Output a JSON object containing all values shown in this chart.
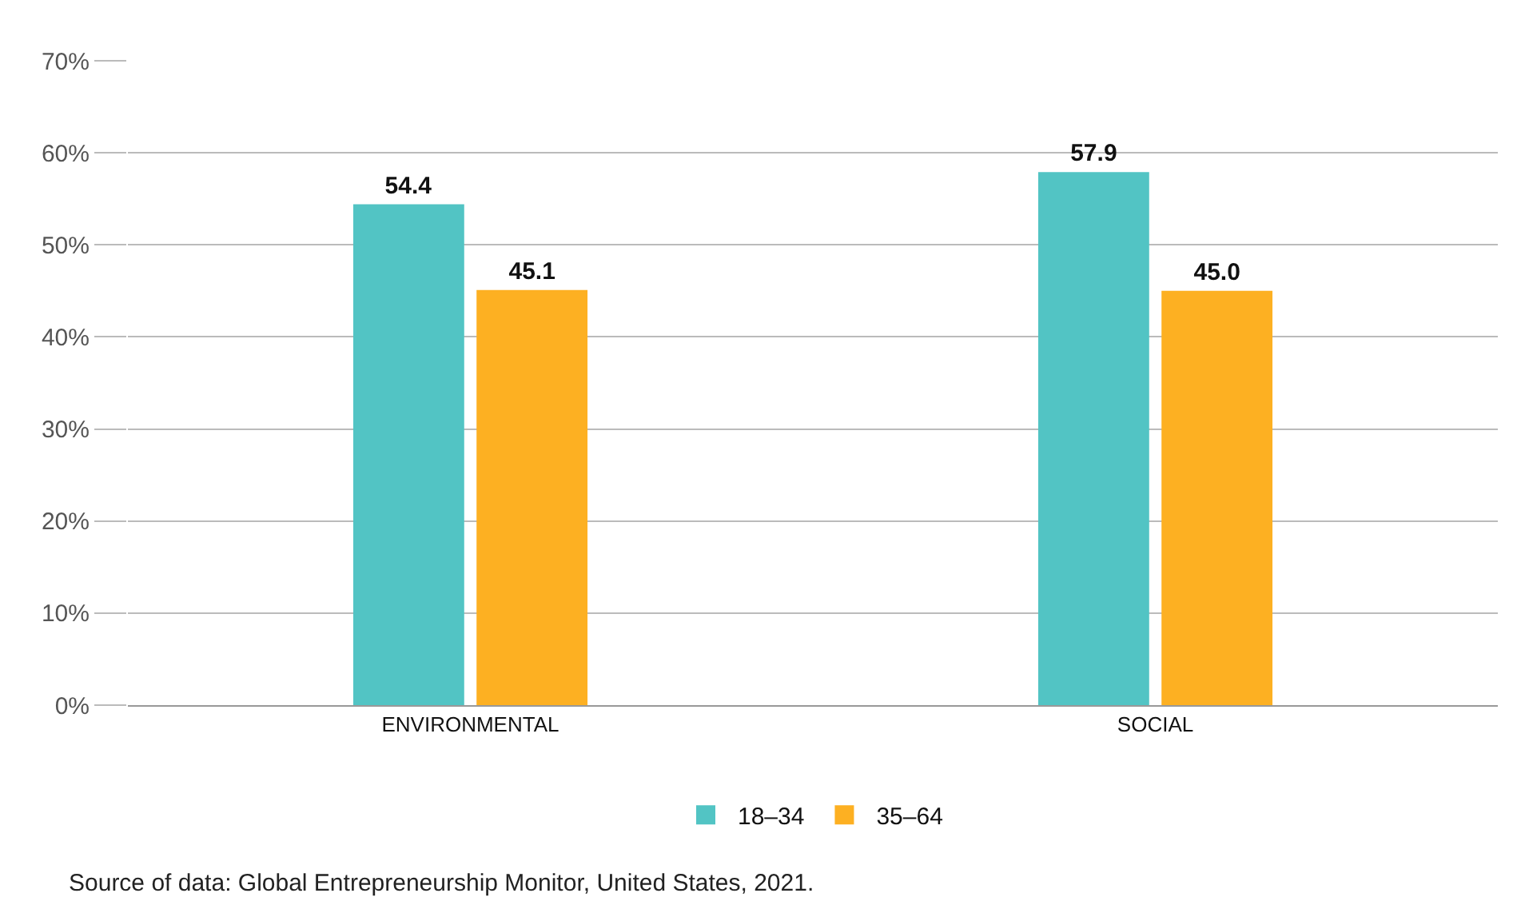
{
  "chart_data": {
    "type": "bar",
    "categories": [
      "ENVIRONMENTAL",
      "SOCIAL"
    ],
    "series": [
      {
        "name": "18–34",
        "color": "#52c4c4",
        "values": [
          54.4,
          57.9
        ],
        "value_labels": [
          "54.4",
          "57.9"
        ]
      },
      {
        "name": "35–64",
        "color": "#fdb022",
        "values": [
          45.1,
          45.0
        ],
        "value_labels": [
          "45.1",
          "45.0"
        ]
      }
    ],
    "ylim": [
      0,
      70
    ],
    "yticks": [
      {
        "value": 0,
        "label": "0%"
      },
      {
        "value": 10,
        "label": "10%"
      },
      {
        "value": 20,
        "label": "20%"
      },
      {
        "value": 30,
        "label": "30%"
      },
      {
        "value": 40,
        "label": "40%"
      },
      {
        "value": 50,
        "label": "50%"
      },
      {
        "value": 60,
        "label": "60%"
      },
      {
        "value": 70,
        "label": "70%"
      }
    ],
    "grid": "y",
    "legend": "bottom",
    "annotations": [
      "Source of data: Global Entrepreneurship Monitor, United States, 2021."
    ]
  }
}
